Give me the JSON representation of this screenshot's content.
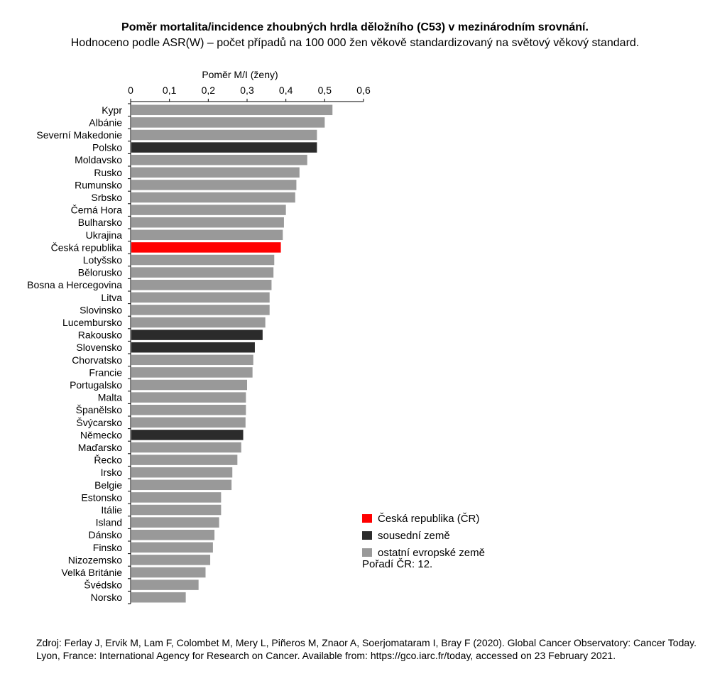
{
  "title": "Poměr mortalita/incidence zhoubných hrdla děložního (C53) v mezinárodním srovnání.",
  "subtitle": "Hodnoceno podle ASR(W) – počet případů na 100 000 žen věkově standardizovaný na světový věkový standard.",
  "chart_data": {
    "type": "bar",
    "orientation": "horizontal",
    "xlabel": "Poměr M/I (ženy)",
    "xlim": [
      0,
      0.6
    ],
    "xticks": [
      0,
      0.1,
      0.2,
      0.3,
      0.4,
      0.5,
      0.6
    ],
    "xtick_labels": [
      "0",
      "0,1",
      "0,2",
      "0,3",
      "0,4",
      "0,5",
      "0,6"
    ],
    "categories": [
      "Kypr",
      "Albánie",
      "Severní Makedonie",
      "Polsko",
      "Moldavsko",
      "Rusko",
      "Rumunsko",
      "Srbsko",
      "Černá Hora",
      "Bulharsko",
      "Ukrajina",
      "Česká republika",
      "Lotyšsko",
      "Bělorusko",
      "Bosna a Hercegovina",
      "Litva",
      "Slovinsko",
      "Lucembursko",
      "Rakousko",
      "Slovensko",
      "Chorvatsko",
      "Francie",
      "Portugalsko",
      "Malta",
      "Španělsko",
      "Švýcarsko",
      "Německo",
      "Maďarsko",
      "Řecko",
      "Irsko",
      "Belgie",
      "Estonsko",
      "Itálie",
      "Island",
      "Dánsko",
      "Finsko",
      "Nizozemsko",
      "Velká Británie",
      "Švédsko",
      "Norsko"
    ],
    "values": [
      0.52,
      0.5,
      0.48,
      0.48,
      0.455,
      0.435,
      0.427,
      0.424,
      0.4,
      0.395,
      0.392,
      0.387,
      0.37,
      0.368,
      0.363,
      0.358,
      0.358,
      0.347,
      0.34,
      0.32,
      0.316,
      0.314,
      0.3,
      0.297,
      0.297,
      0.296,
      0.29,
      0.285,
      0.275,
      0.262,
      0.26,
      0.233,
      0.233,
      0.228,
      0.216,
      0.212,
      0.205,
      0.193,
      0.175,
      0.142
    ],
    "groups": [
      "other",
      "other",
      "other",
      "neighbor",
      "other",
      "other",
      "other",
      "other",
      "other",
      "other",
      "other",
      "cr",
      "other",
      "other",
      "other",
      "other",
      "other",
      "other",
      "neighbor",
      "neighbor",
      "other",
      "other",
      "other",
      "other",
      "other",
      "other",
      "neighbor",
      "other",
      "other",
      "other",
      "other",
      "other",
      "other",
      "other",
      "other",
      "other",
      "other",
      "other",
      "other",
      "other"
    ],
    "colors": {
      "cr": "#ff0000",
      "neighbor": "#2b2b2b",
      "other": "#999999"
    },
    "legend": {
      "placement": "bottom-right",
      "items": [
        {
          "group": "cr",
          "label": "Česká republika (ČR)"
        },
        {
          "group": "neighbor",
          "label": "sousední země"
        },
        {
          "group": "other",
          "label": "ostatní evropské země"
        }
      ],
      "note": "Pořadí ČR: 12."
    },
    "grid": false
  },
  "source": "Zdroj: Ferlay J, Ervik M, Lam F, Colombet M, Mery L, Piñeros M, Znaor A, Soerjomataram I, Bray F (2020). Global Cancer Observatory: Cancer Today. Lyon, France: International Agency for Research on Cancer. Available from: https://gco.iarc.fr/today, accessed on 23 February 2021."
}
